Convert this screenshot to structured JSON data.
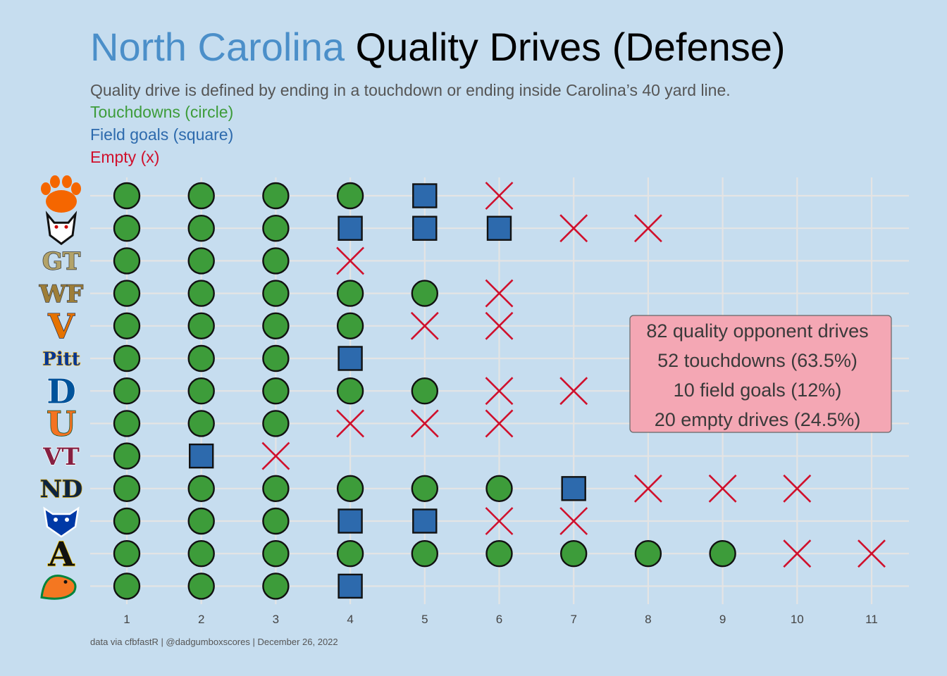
{
  "title": {
    "highlight": "North Carolina",
    "rest": " Quality Drives (Defense)"
  },
  "subtitle": "Quality drive is defined by ending in a touchdown or ending inside Carolina’s 40 yard line.",
  "legend": {
    "touchdowns": "Touchdowns (circle)",
    "field_goals": "Field goals (square)",
    "empty": "Empty (x)"
  },
  "annotation": {
    "line1": "82 quality opponent drives",
    "line2": "52 touchdowns (63.5%)",
    "line3": "10 field goals (12%)",
    "line4": "20 empty drives (24.5%)"
  },
  "caption": "data via cfbfastR | @dadgumboxscores | December 26, 2022",
  "colors": {
    "background": "#c6ddef",
    "title_highlight": "#4b8fc9",
    "title_rest": "#000000",
    "subtitle": "#555555",
    "touchdown": "#3d9c3a",
    "field_goal": "#2d6aad",
    "empty": "#d0102c",
    "gridline": "#e4e4e4",
    "annotation_fill": "#f4a7b4"
  },
  "chart_data": {
    "type": "scatter",
    "xlabel": "",
    "ylabel": "",
    "x_ticks": [
      1,
      2,
      3,
      4,
      5,
      6,
      7,
      8,
      9,
      10,
      11
    ],
    "xlim": [
      0.5,
      11.5
    ],
    "rows": [
      {
        "logo": "clemson-paw-logo",
        "drives": [
          "TD",
          "TD",
          "TD",
          "TD",
          "FG",
          "X"
        ]
      },
      {
        "logo": "nc-state-wolf-logo",
        "drives": [
          "TD",
          "TD",
          "TD",
          "FG",
          "FG",
          "FG",
          "X",
          "X"
        ]
      },
      {
        "logo": "georgia-tech-gt-logo",
        "drives": [
          "TD",
          "TD",
          "TD",
          "X"
        ]
      },
      {
        "logo": "wake-forest-wf-logo",
        "drives": [
          "TD",
          "TD",
          "TD",
          "TD",
          "TD",
          "X"
        ]
      },
      {
        "logo": "virginia-v-logo",
        "drives": [
          "TD",
          "TD",
          "TD",
          "TD",
          "X",
          "X"
        ]
      },
      {
        "logo": "pitt-logo",
        "drives": [
          "TD",
          "TD",
          "TD",
          "FG"
        ]
      },
      {
        "logo": "duke-d-logo",
        "drives": [
          "TD",
          "TD",
          "TD",
          "TD",
          "TD",
          "X",
          "X"
        ]
      },
      {
        "logo": "miami-u-logo",
        "drives": [
          "TD",
          "TD",
          "TD",
          "X",
          "X",
          "X"
        ]
      },
      {
        "logo": "virginia-tech-vt-logo",
        "drives": [
          "TD",
          "FG",
          "X"
        ]
      },
      {
        "logo": "notre-dame-nd-logo",
        "drives": [
          "TD",
          "TD",
          "TD",
          "TD",
          "TD",
          "TD",
          "FG",
          "X",
          "X",
          "X"
        ]
      },
      {
        "logo": "georgia-state-panther-logo",
        "drives": [
          "TD",
          "TD",
          "TD",
          "FG",
          "FG",
          "X",
          "X"
        ]
      },
      {
        "logo": "appalachian-state-a-logo",
        "drives": [
          "TD",
          "TD",
          "TD",
          "TD",
          "TD",
          "TD",
          "TD",
          "TD",
          "TD",
          "X",
          "X"
        ]
      },
      {
        "logo": "famu-rattler-logo",
        "drives": [
          "TD",
          "TD",
          "TD",
          "FG"
        ]
      }
    ]
  }
}
